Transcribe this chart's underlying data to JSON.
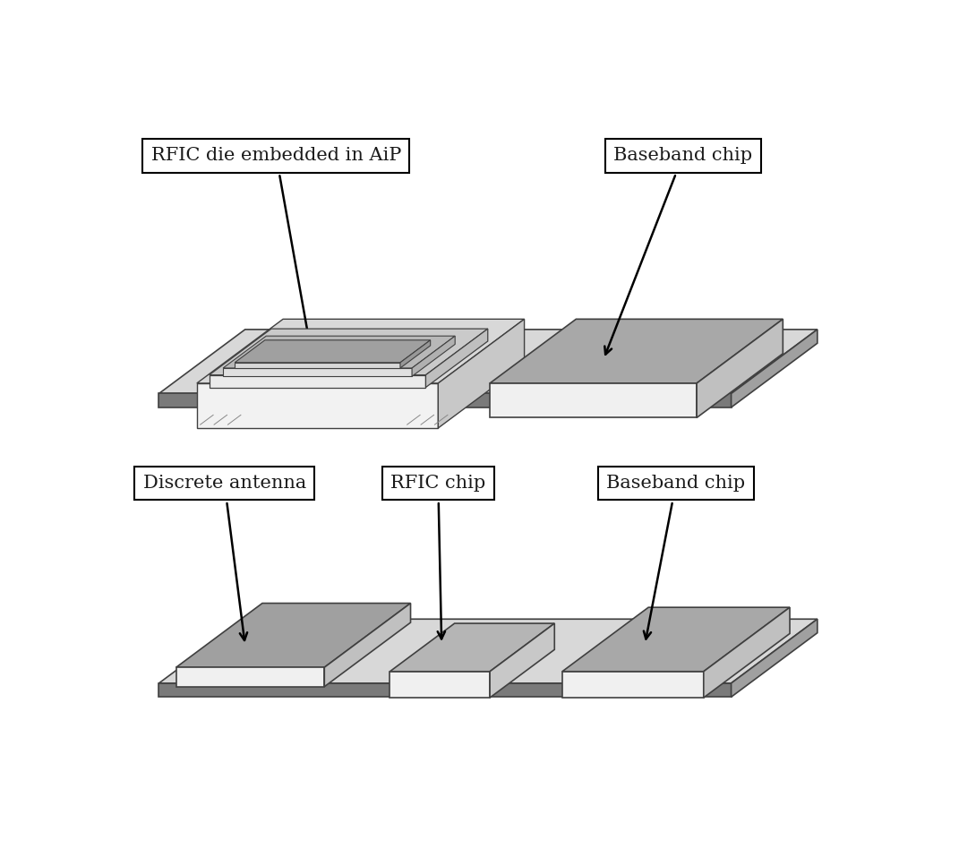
{
  "bg_color": "#ffffff",
  "label1": "RFIC die embedded in AiP",
  "label2": "Baseband chip",
  "label3": "Discrete antenna",
  "label4": "RFIC chip",
  "label5": "Baseband chip",
  "font_size": 15,
  "font_family": "DejaVu Serif",
  "top_board": {
    "surf_color": "#d8d8d8",
    "front_color": "#7a7a7a",
    "right_color": "#a0a0a0"
  },
  "bot_board": {
    "surf_color": "#d8d8d8",
    "front_color": "#7a7a7a",
    "right_color": "#a0a0a0"
  },
  "chip_gray_top": "#a0a0a0",
  "chip_white_front": "#eeeeee",
  "chip_mid_right": "#c0c0c0",
  "aip_outer_top": "#d0d0d0",
  "aip_inner_top": "#b8b8b8",
  "aip_die_top": "#a8a8a8"
}
